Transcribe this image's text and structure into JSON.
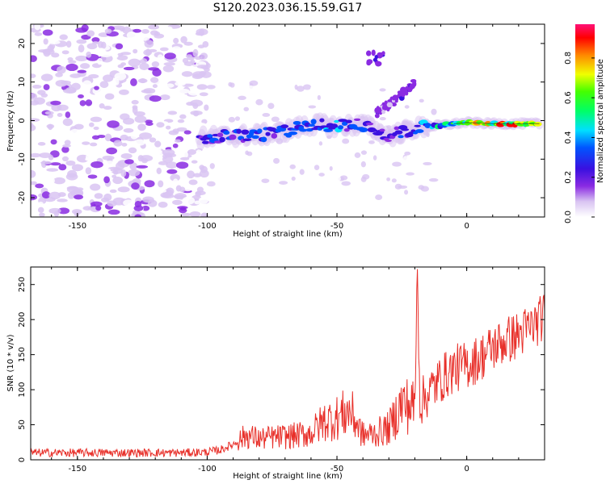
{
  "title": "S120.2023.036.15.59.G17",
  "chart_data": [
    {
      "type": "heatmap",
      "xlabel": "Height of straight line (km)",
      "ylabel": "Frequency (Hz)",
      "xlim": [
        -168,
        30
      ],
      "ylim": [
        -25,
        25
      ],
      "xticks": [
        -150,
        -100,
        -50,
        0
      ],
      "yticks": [
        -20,
        -10,
        0,
        10,
        20
      ],
      "colorbar": {
        "label": "Normalized spectral amplitude",
        "range": [
          0,
          0.97
        ],
        "ticks": [
          0.0,
          0.2,
          0.4,
          0.6,
          0.8
        ]
      },
      "features": {
        "noise_region_x": [
          -168,
          -100
        ],
        "track": [
          {
            "x": -103,
            "y": -4.5,
            "amp": 0.35
          },
          {
            "x": -90,
            "y": -4,
            "amp": 0.38
          },
          {
            "x": -75,
            "y": -3.5,
            "amp": 0.4
          },
          {
            "x": -60,
            "y": -1,
            "amp": 0.42
          },
          {
            "x": -50,
            "y": -1.5,
            "amp": 0.45
          },
          {
            "x": -40,
            "y": -1,
            "amp": 0.4
          },
          {
            "x": -30,
            "y": -4,
            "amp": 0.3
          },
          {
            "x": -20,
            "y": -2,
            "amp": 0.4
          },
          {
            "x": -10,
            "y": -1.2,
            "amp": 0.6
          },
          {
            "x": 0,
            "y": -0.5,
            "amp": 0.75
          },
          {
            "x": 10,
            "y": -0.8,
            "amp": 0.95
          },
          {
            "x": 28,
            "y": -0.8,
            "amp": 0.97
          }
        ],
        "secondary_arc": [
          {
            "x": -35,
            "y": 2
          },
          {
            "x": -28,
            "y": 5
          },
          {
            "x": -20,
            "y": 10
          }
        ]
      }
    },
    {
      "type": "line",
      "xlabel": "Height of straight line (km)",
      "ylabel": "SNR (10 * v/v)",
      "xlim": [
        -168,
        30
      ],
      "ylim": [
        0,
        275
      ],
      "xticks": [
        -150,
        -100,
        -50,
        0
      ],
      "yticks": [
        0,
        50,
        100,
        150,
        200,
        250
      ],
      "color": "#e8302a",
      "series": [
        {
          "x": [
            -168,
            -150,
            -130,
            -110,
            -100,
            -95,
            -90,
            -85,
            -80,
            -75,
            -70,
            -65,
            -60,
            -55,
            -50,
            -45,
            -40,
            -35,
            -30,
            -25,
            -20,
            -19,
            -18,
            -15,
            -10,
            -5,
            0,
            5,
            10,
            15,
            20,
            25,
            30
          ],
          "values": [
            10,
            10,
            10,
            10,
            11,
            14,
            22,
            35,
            30,
            32,
            33,
            35,
            38,
            55,
            60,
            70,
            35,
            38,
            45,
            80,
            75,
            272,
            80,
            95,
            115,
            130,
            135,
            145,
            160,
            170,
            178,
            190,
            205
          ]
        }
      ]
    }
  ]
}
